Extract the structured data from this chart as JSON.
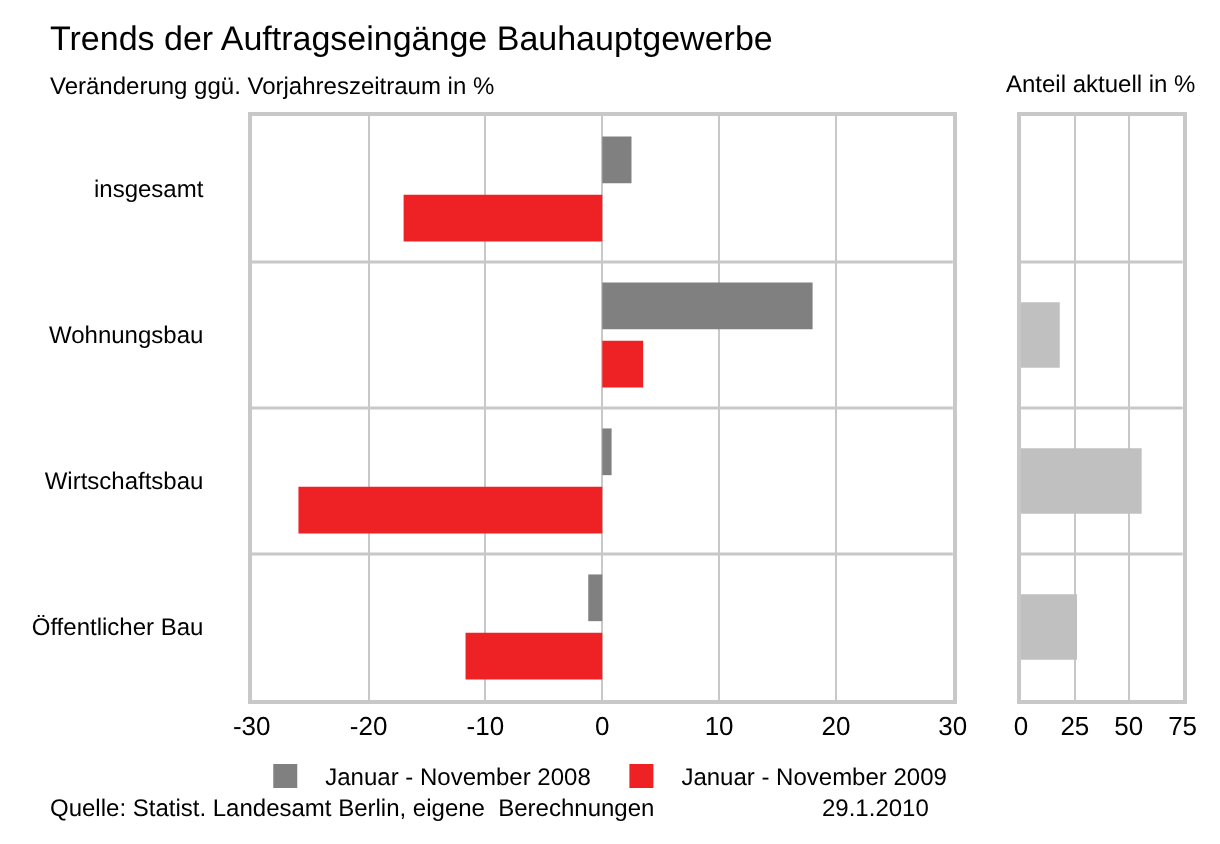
{
  "chart_data": [
    {
      "type": "bar",
      "title": "Trends der Auftragseingänge Bauhauptgewerbe",
      "subtitle": "Veränderung ggü. Vorjahreszeitraum in %",
      "orientation": "horizontal",
      "categories": [
        "insgesamt",
        "Wohnungsbau",
        "Wirtschaftsbau",
        "Öffentlicher Bau"
      ],
      "series": [
        {
          "name": "Januar - November 2008",
          "color": "#808080",
          "values": [
            2.5,
            18.0,
            0.8,
            -1.2
          ]
        },
        {
          "name": "Januar - November 2009",
          "color": "#ee2224",
          "values": [
            -17.0,
            3.5,
            -26.0,
            -11.7
          ]
        }
      ],
      "xlim": [
        -30,
        30
      ],
      "xticks": [
        -30,
        -20,
        -10,
        0,
        10,
        20,
        30
      ],
      "grid": true,
      "legend": "bottom",
      "annotations": [
        "Quelle: Statist. Landesamt Berlin, eigene  Berechnungen",
        "29.1.2010"
      ]
    },
    {
      "type": "bar",
      "title": "Anteil aktuell in %",
      "orientation": "horizontal",
      "categories": [
        null,
        null,
        null,
        null
      ],
      "series": [
        {
          "color": "#c0c0c0",
          "values": [
            null,
            18,
            56,
            26
          ]
        }
      ],
      "xlim": [
        0,
        75
      ],
      "xticks": [
        0,
        25,
        50,
        75
      ],
      "grid": true,
      "tick_labels": "x"
    }
  ]
}
